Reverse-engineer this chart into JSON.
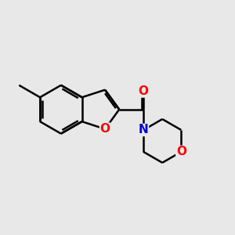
{
  "background_color": "#e8e8e8",
  "bond_color": "#000000",
  "bond_width": 1.8,
  "atom_colors": {
    "O": "#ff0000",
    "N": "#0000cc"
  },
  "font_size_atom": 11,
  "font_size_methyl": 9
}
